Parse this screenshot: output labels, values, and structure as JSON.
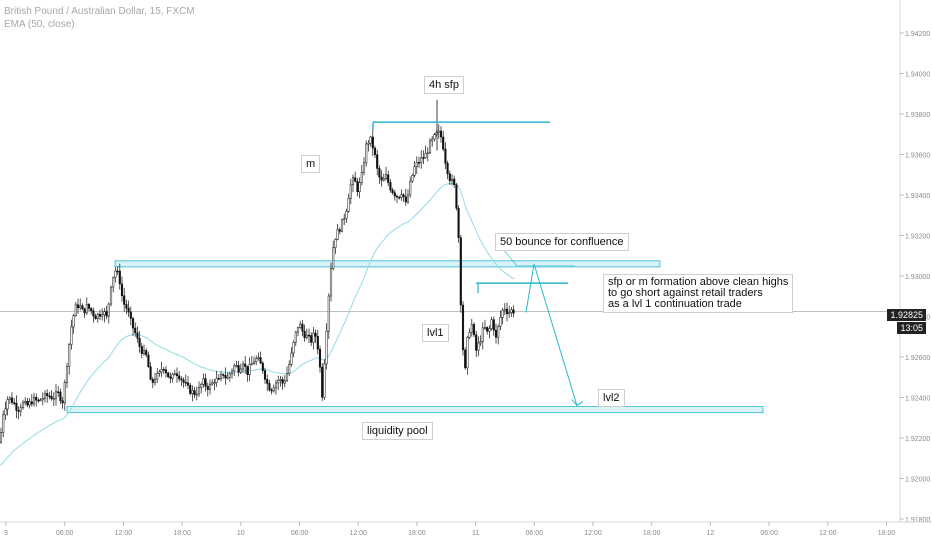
{
  "header": {
    "symbol": "British Pound / Australian Dollar, 15, FXCM",
    "indicator": "EMA (50, close)"
  },
  "colors": {
    "candle": "#111111",
    "level_line": "#28b8cc",
    "level_zone_fill": "#d8f2f7",
    "ema": "#8fdde6",
    "projection": "#28b8cc",
    "axis_text": "#8a8a8a",
    "price_tag_bg": "#222222"
  },
  "annotations": {
    "sfp_4h": "4h sfp",
    "m": "m",
    "bounce": "50 bounce for confluence",
    "plan": "sfp or m formation above clean highs\nto go short against retail traders\nas a lvl 1 continuation trade",
    "lvl1": "lvl1",
    "lvl2": "lvl2",
    "liquidity": "liquidity pool"
  },
  "price_tags": {
    "last": "1.92825",
    "time": "13:05"
  },
  "chart_data": {
    "type": "candlestick",
    "y_axis_ticks": [
      "1.94200",
      "1.94000",
      "1.93800",
      "1.93600",
      "1.93400",
      "1.93200",
      "1.93000",
      "1.92800",
      "1.92600",
      "1.92400",
      "1.92200",
      "1.92000",
      "1.91800"
    ],
    "x_axis_ticks": [
      "9",
      "06:00",
      "12:00",
      "18:00",
      "10",
      "06:00",
      "12:00",
      "18:00",
      "11",
      "06:00",
      "12:00",
      "18:00",
      "12",
      "06:00",
      "12:00",
      "18:00"
    ],
    "ylim": [
      1.9171,
      1.9436
    ],
    "grid": false,
    "levels": {
      "sfp_high": 1.9376,
      "clean_highs_zone": [
        1.93045,
        1.93075
      ],
      "m_top": 1.92965,
      "liquidity_zone": [
        1.92325,
        1.92355
      ],
      "last_price": 1.92825
    },
    "close_path": [
      [
        0,
        1.9218
      ],
      [
        3,
        1.9232
      ],
      [
        8,
        1.924
      ],
      [
        13,
        1.9238
      ],
      [
        18,
        1.9234
      ],
      [
        22,
        1.9237
      ],
      [
        28,
        1.9236
      ],
      [
        33,
        1.9239
      ],
      [
        38,
        1.9238
      ],
      [
        43,
        1.924
      ],
      [
        48,
        1.9241
      ],
      [
        53,
        1.924
      ],
      [
        58,
        1.9242
      ],
      [
        63,
        1.9238
      ],
      [
        67,
        1.9257
      ],
      [
        71,
        1.9274
      ],
      [
        75,
        1.9284
      ],
      [
        79,
        1.9286
      ],
      [
        83,
        1.9282
      ],
      [
        87,
        1.9285
      ],
      [
        91,
        1.9283
      ],
      [
        95,
        1.928
      ],
      [
        99,
        1.9281
      ],
      [
        103,
        1.9283
      ],
      [
        107,
        1.9279
      ],
      [
        111,
        1.9296
      ],
      [
        115,
        1.9303
      ],
      [
        119,
        1.93
      ],
      [
        123,
        1.9287
      ],
      [
        127,
        1.9284
      ],
      [
        131,
        1.9277
      ],
      [
        135,
        1.9272
      ],
      [
        139,
        1.9266
      ],
      [
        143,
        1.9262
      ],
      [
        147,
        1.926
      ],
      [
        151,
        1.9246
      ],
      [
        155,
        1.925
      ],
      [
        159,
        1.9251
      ],
      [
        163,
        1.9256
      ],
      [
        167,
        1.9252
      ],
      [
        171,
        1.9248
      ],
      [
        175,
        1.9253
      ],
      [
        179,
        1.9251
      ],
      [
        183,
        1.9248
      ],
      [
        187,
        1.9245
      ],
      [
        191,
        1.9243
      ],
      [
        195,
        1.9242
      ],
      [
        199,
        1.9244
      ],
      [
        203,
        1.9248
      ],
      [
        207,
        1.9245
      ],
      [
        211,
        1.9246
      ],
      [
        215,
        1.9249
      ],
      [
        219,
        1.9248
      ],
      [
        223,
        1.9252
      ],
      [
        227,
        1.9249
      ],
      [
        231,
        1.9253
      ],
      [
        235,
        1.9256
      ],
      [
        239,
        1.9254
      ],
      [
        243,
        1.9258
      ],
      [
        247,
        1.9252
      ],
      [
        251,
        1.9256
      ],
      [
        255,
        1.9259
      ],
      [
        259,
        1.9258
      ],
      [
        263,
        1.9254
      ],
      [
        267,
        1.9247
      ],
      [
        271,
        1.9244
      ],
      [
        275,
        1.9247
      ],
      [
        279,
        1.9249
      ],
      [
        283,
        1.9247
      ],
      [
        287,
        1.9252
      ],
      [
        291,
        1.926
      ],
      [
        295,
        1.927
      ],
      [
        299,
        1.9277
      ],
      [
        303,
        1.9272
      ],
      [
        307,
        1.927
      ],
      [
        311,
        1.9268
      ],
      [
        315,
        1.9272
      ],
      [
        319,
        1.9262
      ],
      [
        322,
        1.924
      ],
      [
        326,
        1.927
      ],
      [
        330,
        1.93
      ],
      [
        334,
        1.9318
      ],
      [
        338,
        1.9322
      ],
      [
        342,
        1.9326
      ],
      [
        346,
        1.9332
      ],
      [
        350,
        1.9344
      ],
      [
        354,
        1.9348
      ],
      [
        358,
        1.9342
      ],
      [
        362,
        1.935
      ],
      [
        366,
        1.9364
      ],
      [
        370,
        1.9368
      ],
      [
        374,
        1.9362
      ],
      [
        378,
        1.935
      ],
      [
        382,
        1.9346
      ],
      [
        386,
        1.9349
      ],
      [
        390,
        1.9344
      ],
      [
        394,
        1.9341
      ],
      [
        398,
        1.9339
      ],
      [
        402,
        1.9342
      ],
      [
        406,
        1.9335
      ],
      [
        410,
        1.9345
      ],
      [
        414,
        1.9353
      ],
      [
        418,
        1.9356
      ],
      [
        422,
        1.9358
      ],
      [
        426,
        1.936
      ],
      [
        430,
        1.9365
      ],
      [
        434,
        1.9368
      ],
      [
        438,
        1.9371
      ],
      [
        442,
        1.9368
      ],
      [
        446,
        1.9355
      ],
      [
        450,
        1.9348
      ],
      [
        454,
        1.9345
      ],
      [
        458,
        1.9328
      ],
      [
        462,
        1.927
      ],
      [
        465,
        1.9252
      ],
      [
        468,
        1.9272
      ],
      [
        472,
        1.9276
      ],
      [
        476,
        1.9263
      ],
      [
        480,
        1.9268
      ],
      [
        484,
        1.9275
      ],
      [
        488,
        1.9271
      ],
      [
        492,
        1.9279
      ],
      [
        496,
        1.9269
      ],
      [
        500,
        1.9279
      ],
      [
        504,
        1.9285
      ],
      [
        508,
        1.9282
      ],
      [
        512,
        1.9283
      ],
      [
        515,
        1.92825
      ]
    ],
    "projection_path": [
      [
        526,
        1.9282
      ],
      [
        534,
        1.9306
      ],
      [
        577,
        1.9236
      ]
    ],
    "m_path": [
      [
        476,
        1.9268
      ],
      [
        477,
        1.9295
      ],
      [
        508,
        1.9296
      ]
    ]
  }
}
